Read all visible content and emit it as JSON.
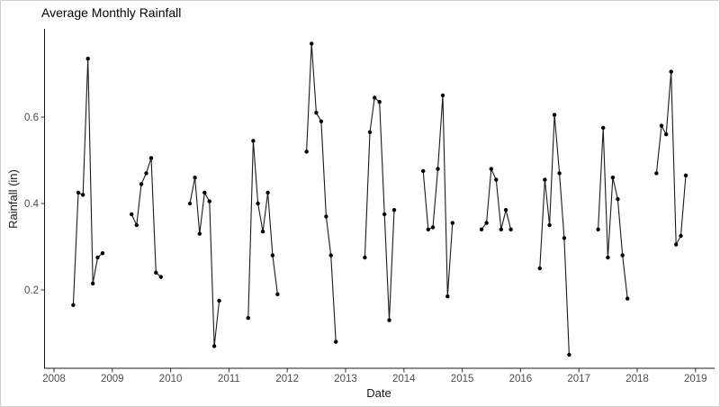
{
  "window": {
    "background": "#ffffff",
    "border_color": "#cfcfcf"
  },
  "chart_data": {
    "type": "line",
    "title": "Average Monthly Rainfall",
    "xlabel": "Date",
    "ylabel": "Rainfall (in)",
    "point_marker": "filled-circle",
    "point_color": "#000000",
    "line_color": "#1a1a1a",
    "axis_line_color": "#1a1a1a",
    "tick_label_color": "#4d4d4d",
    "title_color": "#000000",
    "grid": false,
    "legend": "none",
    "x_ticks": [
      2008,
      2009,
      2010,
      2011,
      2012,
      2013,
      2014,
      2015,
      2016,
      2017,
      2018,
      2019
    ],
    "y_ticks": [
      0.2,
      0.4,
      0.6
    ],
    "y_tick_labels": [
      "0.2",
      "0.4",
      "0.6"
    ],
    "ylim": [
      0.015,
      0.805
    ],
    "x_axis_range": [
      "Nov 2007",
      "May 2019"
    ],
    "months": [
      "May",
      "Jun",
      "Jul",
      "Aug",
      "Sep",
      "Oct",
      "Nov"
    ],
    "gaps_between_years": true,
    "series": [
      {
        "year": 2008,
        "values": [
          0.165,
          0.425,
          0.42,
          0.735,
          0.215,
          0.275,
          0.285
        ]
      },
      {
        "year": 2009,
        "values": [
          0.375,
          0.35,
          0.445,
          0.47,
          0.505,
          0.24,
          0.23
        ]
      },
      {
        "year": 2010,
        "values": [
          0.4,
          0.46,
          0.33,
          0.425,
          0.405,
          0.07,
          0.175
        ]
      },
      {
        "year": 2011,
        "values": [
          0.135,
          0.545,
          0.4,
          0.335,
          0.425,
          0.28,
          0.19
        ]
      },
      {
        "year": 2012,
        "values": [
          0.52,
          0.77,
          0.61,
          0.59,
          0.37,
          0.28,
          0.08
        ]
      },
      {
        "year": 2013,
        "values": [
          0.275,
          0.565,
          0.645,
          0.635,
          0.375,
          0.13,
          0.385
        ]
      },
      {
        "year": 2014,
        "values": [
          0.475,
          0.34,
          0.345,
          0.48,
          0.65,
          0.185,
          0.355
        ]
      },
      {
        "year": 2015,
        "values": [
          0.34,
          0.355,
          0.48,
          0.455,
          0.34,
          0.385,
          0.34
        ]
      },
      {
        "year": 2016,
        "values": [
          0.25,
          0.455,
          0.35,
          0.605,
          0.47,
          0.32,
          0.05
        ]
      },
      {
        "year": 2017,
        "values": [
          0.34,
          0.575,
          0.275,
          0.46,
          0.41,
          0.28,
          0.18
        ]
      },
      {
        "year": 2018,
        "values": [
          0.47,
          0.58,
          0.56,
          0.705,
          0.305,
          0.325,
          0.465
        ]
      }
    ]
  }
}
